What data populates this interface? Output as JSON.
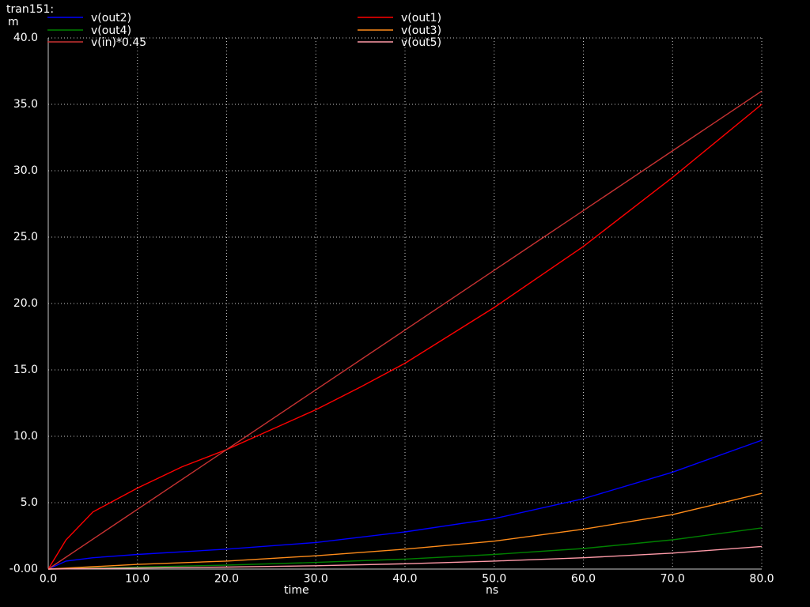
{
  "header": {
    "title": "tran151:",
    "unit": "m"
  },
  "chart_data": {
    "type": "line",
    "xlabel": "time",
    "xunit": "ns",
    "xlim": [
      0,
      80
    ],
    "ylim": [
      0,
      40
    ],
    "xticks": [
      0,
      10,
      20,
      30,
      40,
      50,
      60,
      70,
      80
    ],
    "yticks": [
      0,
      5,
      10,
      15,
      20,
      25,
      30,
      35,
      40
    ],
    "xtick_labels": [
      "0.0",
      "10.0",
      "20.0",
      "30.0",
      "40.0",
      "50.0",
      "60.0",
      "70.0",
      "80.0"
    ],
    "ytick_labels": [
      "-0.00",
      "5.0",
      "10.0",
      "15.0",
      "20.0",
      "25.0",
      "30.0",
      "35.0",
      "40.0"
    ],
    "grid": true,
    "legend_position": "top",
    "series": [
      {
        "name": "v(out2)",
        "color": "#0000ff",
        "x": [
          0,
          2,
          5,
          10,
          20,
          30,
          40,
          50,
          60,
          70,
          80
        ],
        "y": [
          0,
          0.6,
          0.85,
          1.1,
          1.5,
          2.0,
          2.8,
          3.8,
          5.3,
          7.3,
          9.7
        ]
      },
      {
        "name": "v(out1)",
        "color": "#ff0000",
        "x": [
          0,
          2,
          5,
          10,
          15,
          20,
          25,
          30,
          35,
          40,
          50,
          60,
          70,
          80
        ],
        "y": [
          0,
          2.2,
          4.3,
          6.1,
          7.7,
          9.0,
          10.5,
          12.0,
          13.7,
          15.5,
          19.7,
          24.3,
          29.5,
          35.0
        ]
      },
      {
        "name": "v(out4)",
        "color": "#008000",
        "x": [
          0,
          10,
          20,
          30,
          40,
          50,
          60,
          70,
          80
        ],
        "y": [
          0,
          0.15,
          0.3,
          0.5,
          0.75,
          1.1,
          1.55,
          2.2,
          3.1
        ]
      },
      {
        "name": "v(out3)",
        "color": "#ff8c1a",
        "x": [
          0,
          10,
          20,
          30,
          40,
          50,
          60,
          70,
          80
        ],
        "y": [
          0,
          0.35,
          0.6,
          1.0,
          1.5,
          2.1,
          3.0,
          4.1,
          5.7
        ]
      },
      {
        "name": "v(in)*0.45",
        "color": "#c83232",
        "x": [
          0,
          20,
          40,
          60,
          80
        ],
        "y": [
          0,
          9.0,
          18.0,
          27.0,
          36.0
        ]
      },
      {
        "name": "v(out5)",
        "color": "#ff9aa8",
        "x": [
          0,
          10,
          20,
          30,
          40,
          50,
          60,
          70,
          80
        ],
        "y": [
          0,
          0.08,
          0.15,
          0.25,
          0.4,
          0.6,
          0.85,
          1.2,
          1.7
        ]
      }
    ]
  }
}
